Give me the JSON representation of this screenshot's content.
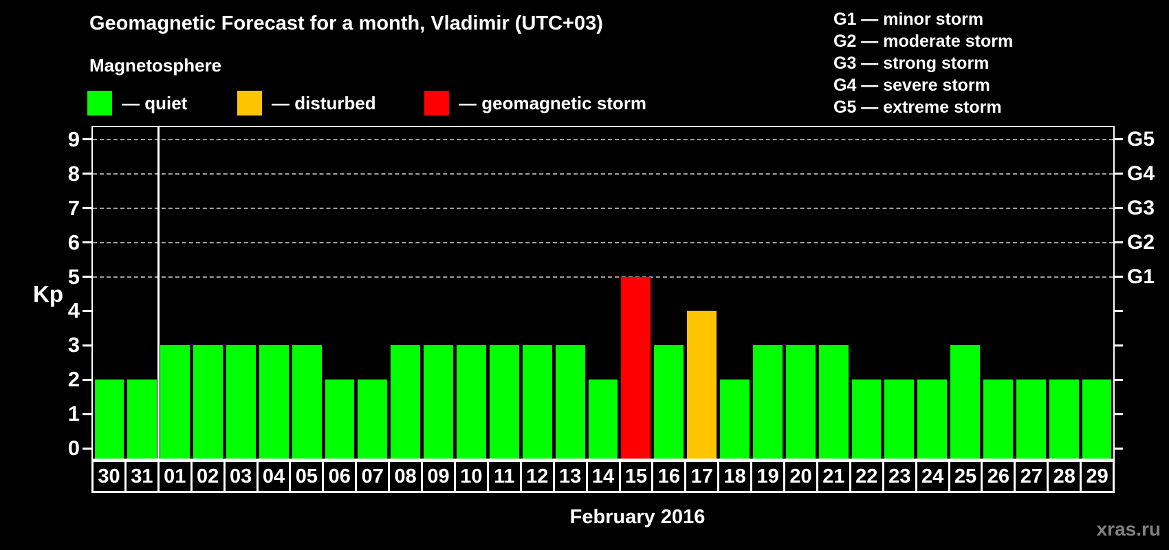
{
  "title": "Geomagnetic Forecast for a month, Vladimir (UTC+03)",
  "subtitle": "Magnetosphere",
  "legend": {
    "items": [
      {
        "state": "quiet",
        "label": "— quiet"
      },
      {
        "state": "disturbed",
        "label": "— disturbed"
      },
      {
        "state": "storm",
        "label": "— geomagnetic storm"
      }
    ]
  },
  "g_legend": [
    "G1 — minor storm",
    "G2 — moderate storm",
    "G3 — strong storm",
    "G4 — severe storm",
    "G5 — extreme storm"
  ],
  "colors": {
    "quiet": "#00ff00",
    "disturbed": "#ffc400",
    "storm": "#ff0000",
    "grid": "#a0a0a0",
    "watermark": "#808080"
  },
  "watermark": "xras.ru",
  "chart_data": {
    "type": "bar",
    "title": "Geomagnetic Forecast for a month, Vladimir (UTC+03)",
    "ylabel": "Kp",
    "xlabel": "February 2016",
    "ylim": [
      0,
      9
    ],
    "y_ticks": [
      0,
      1,
      2,
      3,
      4,
      5,
      6,
      7,
      8,
      9
    ],
    "gridline_kp": [
      5,
      6,
      7,
      8,
      9
    ],
    "right_axis_labels": [
      {
        "label": "G1",
        "kp": 5
      },
      {
        "label": "G2",
        "kp": 6
      },
      {
        "label": "G3",
        "kp": 7
      },
      {
        "label": "G4",
        "kp": 8
      },
      {
        "label": "G5",
        "kp": 9
      }
    ],
    "categories": [
      "30",
      "31",
      "01",
      "02",
      "03",
      "04",
      "05",
      "06",
      "07",
      "08",
      "09",
      "10",
      "11",
      "12",
      "13",
      "14",
      "15",
      "16",
      "17",
      "18",
      "19",
      "20",
      "21",
      "22",
      "23",
      "24",
      "25",
      "26",
      "27",
      "28",
      "29"
    ],
    "values": [
      2,
      2,
      3,
      3,
      3,
      3,
      3,
      2,
      2,
      3,
      3,
      3,
      3,
      3,
      3,
      2,
      5,
      3,
      4,
      2,
      3,
      3,
      3,
      2,
      2,
      2,
      3,
      2,
      2,
      2,
      2
    ],
    "states": [
      "quiet",
      "quiet",
      "quiet",
      "quiet",
      "quiet",
      "quiet",
      "quiet",
      "quiet",
      "quiet",
      "quiet",
      "quiet",
      "quiet",
      "quiet",
      "quiet",
      "quiet",
      "quiet",
      "storm",
      "quiet",
      "disturbed",
      "quiet",
      "quiet",
      "quiet",
      "quiet",
      "quiet",
      "quiet",
      "quiet",
      "quiet",
      "quiet",
      "quiet",
      "quiet",
      "quiet"
    ],
    "month_separator_before": "01",
    "legend_position": "top-left",
    "grid": "dashed horizontal at Kp 5-9 only"
  }
}
